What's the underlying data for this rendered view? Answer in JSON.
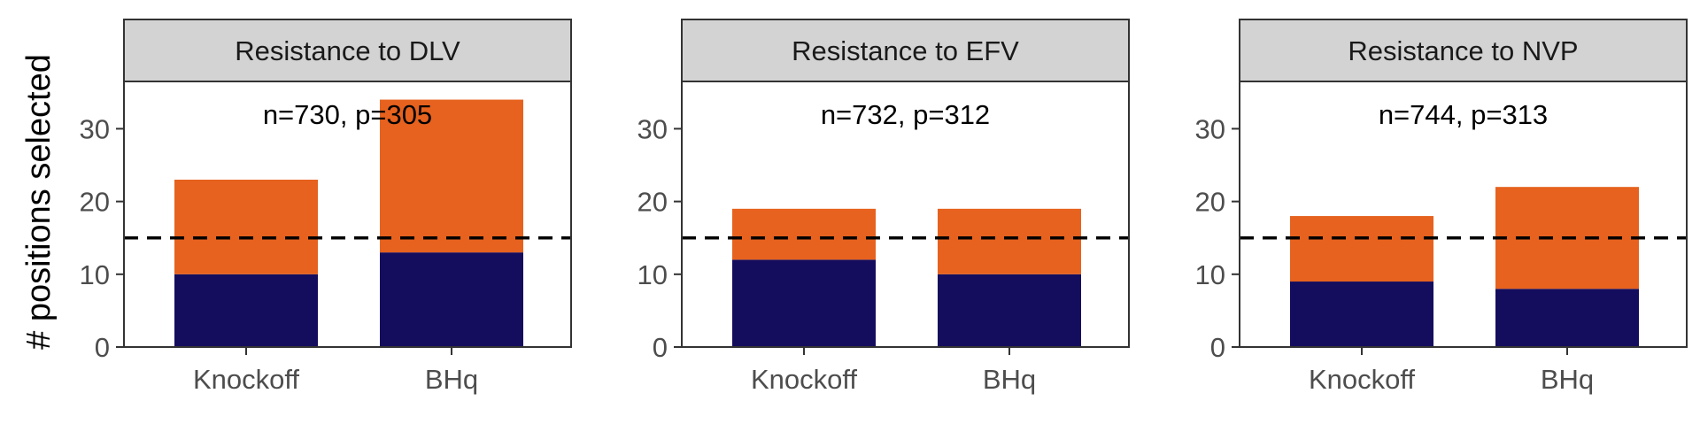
{
  "chart_data": {
    "type": "bar",
    "stacked": true,
    "ylabel": "# positions selected",
    "xlabel": "",
    "ylim": [
      0,
      36.5
    ],
    "yticks": [
      0,
      10,
      20,
      30
    ],
    "categories": [
      "Knockoff",
      "BHq"
    ],
    "reference_line": {
      "y": 15,
      "style": "dashed",
      "color": "#000000"
    },
    "colors": {
      "bottom": "#140D5E",
      "top": "#E6621E",
      "strip_bg": "#D3D3D3"
    },
    "grid": false,
    "legend": "none",
    "panels": [
      {
        "title": "Resistance to DLV",
        "annotation": "n=730, p=305",
        "series": [
          {
            "values": [
              10,
              13
            ]
          },
          {
            "values": [
              13,
              21
            ]
          }
        ]
      },
      {
        "title": "Resistance to EFV",
        "annotation": "n=732, p=312",
        "series": [
          {
            "values": [
              12,
              10
            ]
          },
          {
            "values": [
              7,
              9
            ]
          }
        ]
      },
      {
        "title": "Resistance to NVP",
        "annotation": "n=744, p=313",
        "series": [
          {
            "values": [
              9,
              8
            ]
          },
          {
            "values": [
              9,
              14
            ]
          }
        ]
      }
    ]
  }
}
